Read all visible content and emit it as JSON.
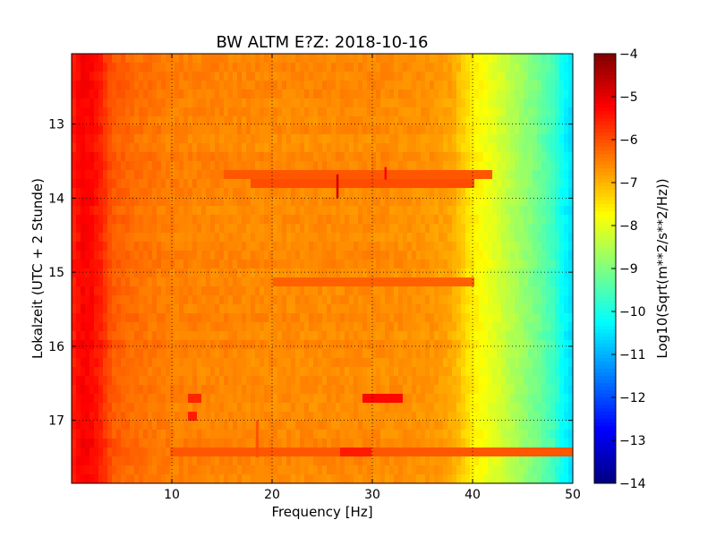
{
  "chart_data": {
    "type": "heatmap",
    "title": "BW ALTM E?Z: 2018-10-16",
    "xlabel": "Frequency [Hz]",
    "ylabel": "Lokalzeit (UTC + 2 Stunde)",
    "xlim": [
      0,
      50
    ],
    "ylim": [
      12.05,
      17.85
    ],
    "y_inverted": true,
    "x_ticks": [
      10,
      20,
      30,
      40,
      50
    ],
    "y_ticks": [
      13,
      14,
      15,
      16,
      17
    ],
    "grid": true,
    "colormap": "jet",
    "colorbar": {
      "label": "Log10(Sqrt(m**2/s**2/Hz))",
      "range": [
        -14,
        -4
      ],
      "ticks": [
        -4,
        -5,
        -6,
        -7,
        -8,
        -9,
        -10,
        -11,
        -12,
        -13,
        -14
      ]
    },
    "spectrum_profile": {
      "frequency_hz": [
        0,
        1,
        2,
        3,
        4,
        6,
        10,
        20,
        30,
        36,
        38,
        40,
        42,
        44,
        46,
        48,
        49,
        50
      ],
      "log_amplitude": [
        -5.6,
        -5.2,
        -5.3,
        -5.6,
        -6.1,
        -6.3,
        -6.5,
        -6.6,
        -6.6,
        -6.7,
        -6.9,
        -7.6,
        -8.0,
        -8.5,
        -9.0,
        -9.6,
        -10.2,
        -10.6
      ]
    },
    "features": [
      {
        "type": "band",
        "time": 13.72,
        "f_start": 15,
        "f_end": 42,
        "value": -6.1
      },
      {
        "type": "band",
        "time": 13.83,
        "f_start": 18,
        "f_end": 40,
        "value": -6.0
      },
      {
        "type": "band",
        "time": 15.12,
        "f_start": 20,
        "f_end": 40,
        "value": -6.2
      },
      {
        "type": "band",
        "time": 16.72,
        "f_start": 29,
        "f_end": 33,
        "value": -5.3
      },
      {
        "type": "band",
        "time": 16.7,
        "f_start": 11.5,
        "f_end": 13,
        "value": -5.6
      },
      {
        "type": "band",
        "time": 16.97,
        "f_start": 11.5,
        "f_end": 12.5,
        "value": -5.5
      },
      {
        "type": "band",
        "time": 17.42,
        "f_start": 10,
        "f_end": 50,
        "value": -6.1
      },
      {
        "type": "band",
        "time": 17.42,
        "f_start": 27,
        "f_end": 30,
        "value": -5.5
      },
      {
        "type": "spike",
        "freq": 26.5,
        "t_start": 13.68,
        "t_end": 14.0,
        "value": -4.8
      },
      {
        "type": "spike",
        "freq": 31.3,
        "t_start": 13.58,
        "t_end": 13.75,
        "value": -5.3
      },
      {
        "type": "spike",
        "freq": 18.5,
        "t_start": 17.0,
        "t_end": 17.5,
        "value": -6.0
      }
    ]
  }
}
